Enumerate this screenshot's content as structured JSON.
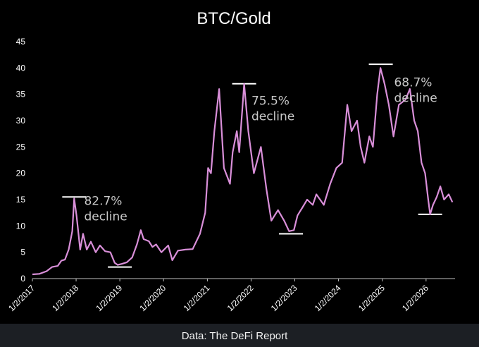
{
  "chart_data": {
    "type": "line",
    "title": "BTC/Gold",
    "xlabel": "",
    "ylabel": "",
    "ylim": [
      0,
      45
    ],
    "yticks": [
      0,
      5,
      10,
      15,
      20,
      25,
      30,
      35,
      40,
      45
    ],
    "x_tick_labels": [
      "1/2/2017",
      "1/2/2018",
      "1/2/2019",
      "1/2/2020",
      "1/2/2021",
      "1/2/2022",
      "1/2/2023",
      "1/2/2024",
      "1/2/2025",
      "1/2/2026"
    ],
    "grid": false,
    "line_color": "#d98fd9",
    "series": [
      {
        "name": "",
        "points": [
          [
            "2017-01-02",
            0.8
          ],
          [
            "2017-03-01",
            0.9
          ],
          [
            "2017-05-01",
            1.4
          ],
          [
            "2017-06-15",
            2.2
          ],
          [
            "2017-08-01",
            2.4
          ],
          [
            "2017-09-01",
            3.4
          ],
          [
            "2017-10-01",
            3.6
          ],
          [
            "2017-11-01",
            5.5
          ],
          [
            "2017-12-01",
            9.0
          ],
          [
            "2017-12-17",
            15.2
          ],
          [
            "2018-01-05",
            12.0
          ],
          [
            "2018-02-05",
            5.5
          ],
          [
            "2018-03-01",
            8.5
          ],
          [
            "2018-04-01",
            5.5
          ],
          [
            "2018-05-05",
            7.0
          ],
          [
            "2018-06-15",
            5.0
          ],
          [
            "2018-07-20",
            6.3
          ],
          [
            "2018-09-01",
            5.2
          ],
          [
            "2018-10-15",
            5.0
          ],
          [
            "2018-11-20",
            3.0
          ],
          [
            "2018-12-15",
            2.6
          ],
          [
            "2019-01-20",
            2.8
          ],
          [
            "2019-03-01",
            3.1
          ],
          [
            "2019-04-15",
            4.0
          ],
          [
            "2019-05-25",
            6.5
          ],
          [
            "2019-06-26",
            9.2
          ],
          [
            "2019-07-20",
            7.5
          ],
          [
            "2019-09-01",
            7.1
          ],
          [
            "2019-10-01",
            6.0
          ],
          [
            "2019-11-01",
            6.5
          ],
          [
            "2019-12-15",
            5.0
          ],
          [
            "2020-02-10",
            6.3
          ],
          [
            "2020-03-15",
            3.5
          ],
          [
            "2020-05-01",
            5.3
          ],
          [
            "2020-07-01",
            5.5
          ],
          [
            "2020-09-01",
            5.6
          ],
          [
            "2020-11-01",
            8.5
          ],
          [
            "2020-12-15",
            12.5
          ],
          [
            "2021-01-08",
            21.0
          ],
          [
            "2021-02-01",
            20.0
          ],
          [
            "2021-03-01",
            28.0
          ],
          [
            "2021-04-10",
            36.0
          ],
          [
            "2021-05-20",
            21.0
          ],
          [
            "2021-07-10",
            18.0
          ],
          [
            "2021-08-01",
            24.0
          ],
          [
            "2021-09-05",
            28.0
          ],
          [
            "2021-09-25",
            24.0
          ],
          [
            "2021-11-05",
            37.0
          ],
          [
            "2021-12-10",
            28.0
          ],
          [
            "2022-01-25",
            20.0
          ],
          [
            "2022-03-25",
            25.0
          ],
          [
            "2022-05-10",
            17.0
          ],
          [
            "2022-06-20",
            11.0
          ],
          [
            "2022-08-15",
            13.0
          ],
          [
            "2022-10-05",
            11.0
          ],
          [
            "2022-11-15",
            9.0
          ],
          [
            "2022-12-25",
            9.2
          ],
          [
            "2023-01-25",
            12.0
          ],
          [
            "2023-03-20",
            14.0
          ],
          [
            "2023-04-15",
            15.0
          ],
          [
            "2023-06-01",
            14.0
          ],
          [
            "2023-07-01",
            16.0
          ],
          [
            "2023-09-01",
            14.0
          ],
          [
            "2023-10-25",
            18.0
          ],
          [
            "2023-12-15",
            21.0
          ],
          [
            "2024-02-01",
            22.0
          ],
          [
            "2024-03-15",
            33.0
          ],
          [
            "2024-04-20",
            28.0
          ],
          [
            "2024-06-05",
            30.0
          ],
          [
            "2024-07-05",
            25.0
          ],
          [
            "2024-08-05",
            22.0
          ],
          [
            "2024-09-15",
            27.0
          ],
          [
            "2024-10-15",
            25.0
          ],
          [
            "2024-11-20",
            35.0
          ],
          [
            "2024-12-17",
            40.0
          ],
          [
            "2025-01-20",
            37.0
          ],
          [
            "2025-02-25",
            33.0
          ],
          [
            "2025-04-05",
            27.0
          ],
          [
            "2025-05-20",
            33.0
          ],
          [
            "2025-07-15",
            34.0
          ],
          [
            "2025-08-20",
            36.0
          ],
          [
            "2025-09-25",
            30.0
          ],
          [
            "2025-10-25",
            28.0
          ],
          [
            "2025-11-25",
            22.0
          ],
          [
            "2025-12-25",
            20.0
          ],
          [
            "2026-01-20",
            15.0
          ],
          [
            "2026-02-05",
            12.2
          ],
          [
            "2026-03-01",
            14.0
          ],
          [
            "2026-04-01",
            15.5
          ],
          [
            "2026-05-01",
            17.5
          ],
          [
            "2026-06-01",
            15.0
          ],
          [
            "2026-07-10",
            16.0
          ],
          [
            "2026-08-10",
            14.5
          ]
        ]
      }
    ],
    "annotations": [
      {
        "text": "82.7% decline",
        "lines": [
          "82.7%",
          "decline"
        ],
        "x": "2018-03-10",
        "y": 14.0
      },
      {
        "text": "75.5% decline",
        "lines": [
          "75.5%",
          "decline"
        ],
        "x": "2022-01-05",
        "y": 33.0
      },
      {
        "text": "68.7% decline",
        "lines": [
          "68.7%",
          "decline"
        ],
        "x": "2025-04-10",
        "y": 36.5
      }
    ],
    "peak_trough_markers": [
      {
        "date": "2017-12-17",
        "y": 15.5
      },
      {
        "date": "2019-01-02",
        "y": 2.2
      },
      {
        "date": "2021-11-05",
        "y": 37.0
      },
      {
        "date": "2022-12-01",
        "y": 8.5
      },
      {
        "date": "2024-12-20",
        "y": 40.7
      },
      {
        "date": "2026-02-05",
        "y": 12.2
      }
    ]
  },
  "footer": {
    "source_text": "Data: The DeFi Report"
  }
}
